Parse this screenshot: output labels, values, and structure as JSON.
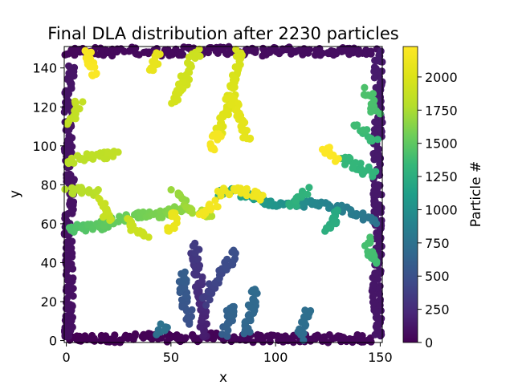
{
  "chart_data": {
    "type": "scatter",
    "title": "Final DLA distribution after 2230 particles",
    "xlabel": "x",
    "ylabel": "y",
    "xlim": [
      -1,
      151
    ],
    "ylim": [
      -1,
      151
    ],
    "xticks": [
      0,
      50,
      100,
      150
    ],
    "yticks": [
      0,
      20,
      40,
      60,
      80,
      100,
      120,
      140
    ],
    "colorbar": {
      "label": "Particle #",
      "colormap": "viridis",
      "range": [
        0,
        2229
      ],
      "ticks": [
        0,
        250,
        500,
        750,
        1000,
        1250,
        1500,
        1750,
        2000
      ]
    },
    "grid": false,
    "n_particles": 2230,
    "branches": [
      {
        "start_id": 0,
        "points": [
          [
            1,
            1
          ],
          [
            12,
            1
          ],
          [
            25,
            1
          ],
          [
            40,
            2
          ],
          [
            55,
            1
          ],
          [
            70,
            2
          ],
          [
            85,
            1
          ],
          [
            100,
            1
          ],
          [
            115,
            1
          ],
          [
            130,
            1
          ],
          [
            145,
            1
          ]
        ]
      },
      {
        "start_id": 40,
        "points": [
          [
            1,
            148
          ],
          [
            10,
            149
          ],
          [
            20,
            148
          ],
          [
            33,
            149
          ],
          [
            45,
            148
          ],
          [
            60,
            149
          ],
          [
            75,
            149
          ],
          [
            90,
            148
          ],
          [
            105,
            149
          ],
          [
            120,
            148
          ],
          [
            135,
            149
          ],
          [
            148,
            148
          ]
        ]
      },
      {
        "start_id": 80,
        "points": [
          [
            1,
            2
          ],
          [
            2,
            20
          ],
          [
            1,
            40
          ],
          [
            1,
            60
          ],
          [
            2,
            80
          ],
          [
            1,
            100
          ],
          [
            1,
            120
          ],
          [
            2,
            140
          ]
        ]
      },
      {
        "start_id": 115,
        "points": [
          [
            149,
            3
          ],
          [
            148,
            25
          ],
          [
            149,
            45
          ],
          [
            149,
            70
          ],
          [
            148,
            90
          ],
          [
            149,
            110
          ],
          [
            149,
            130
          ],
          [
            149,
            147
          ]
        ]
      },
      {
        "start_id": 150,
        "points": [
          [
            65,
            1
          ],
          [
            66,
            8
          ],
          [
            65,
            16
          ],
          [
            64,
            24
          ],
          [
            63,
            32
          ],
          [
            62,
            40
          ],
          [
            61,
            46
          ],
          [
            62,
            50
          ]
        ]
      },
      {
        "start_id": 360,
        "points": [
          [
            66,
            20
          ],
          [
            70,
            28
          ],
          [
            74,
            34
          ],
          [
            78,
            40
          ],
          [
            80,
            45
          ]
        ]
      },
      {
        "start_id": 500,
        "points": [
          [
            60,
            10
          ],
          [
            57,
            18
          ],
          [
            55,
            26
          ],
          [
            56,
            34
          ]
        ]
      },
      {
        "start_id": 600,
        "points": [
          [
            76,
            4
          ],
          [
            78,
            12
          ],
          [
            80,
            18
          ]
        ]
      },
      {
        "start_id": 650,
        "points": [
          [
            86,
            3
          ],
          [
            88,
            12
          ],
          [
            89,
            20
          ],
          [
            90,
            26
          ]
        ]
      },
      {
        "start_id": 700,
        "points": [
          [
            112,
            2
          ],
          [
            113,
            8
          ],
          [
            115,
            14
          ]
        ]
      },
      {
        "start_id": 730,
        "points": [
          [
            45,
            3
          ],
          [
            47,
            7
          ]
        ]
      },
      {
        "start_id": 760,
        "points": [
          [
            148,
            62
          ],
          [
            142,
            64
          ],
          [
            136,
            66
          ],
          [
            130,
            68
          ],
          [
            122,
            70
          ],
          [
            114,
            70
          ],
          [
            106,
            70
          ],
          [
            98,
            71
          ]
        ]
      },
      {
        "start_id": 1040,
        "points": [
          [
            98,
            71
          ],
          [
            92,
            73
          ],
          [
            86,
            75
          ],
          [
            80,
            76
          ],
          [
            74,
            76
          ]
        ]
      },
      {
        "start_id": 1200,
        "points": [
          [
            130,
            66
          ],
          [
            128,
            60
          ],
          [
            125,
            56
          ]
        ]
      },
      {
        "start_id": 1260,
        "points": [
          [
            106,
            68
          ],
          [
            110,
            72
          ],
          [
            115,
            77
          ]
        ]
      },
      {
        "start_id": 1300,
        "points": [
          [
            148,
            85
          ],
          [
            142,
            88
          ],
          [
            136,
            91
          ],
          [
            132,
            93
          ]
        ]
      },
      {
        "start_id": 1340,
        "points": [
          [
            147,
            102
          ],
          [
            143,
            106
          ],
          [
            139,
            110
          ]
        ]
      },
      {
        "start_id": 1380,
        "points": [
          [
            148,
            40
          ],
          [
            145,
            45
          ],
          [
            144,
            52
          ]
        ]
      },
      {
        "start_id": 1410,
        "points": [
          [
            148,
            118
          ],
          [
            145,
            124
          ],
          [
            144,
            128
          ]
        ]
      },
      {
        "start_id": 1430,
        "points": [
          [
            1,
            57
          ],
          [
            8,
            58
          ],
          [
            16,
            59
          ],
          [
            22,
            61
          ],
          [
            28,
            63
          ],
          [
            36,
            64
          ],
          [
            44,
            64
          ],
          [
            50,
            66
          ],
          [
            56,
            69
          ]
        ]
      },
      {
        "start_id": 1650,
        "points": [
          [
            56,
            69
          ],
          [
            54,
            74
          ],
          [
            52,
            76
          ]
        ]
      },
      {
        "start_id": 1700,
        "points": [
          [
            56,
            69
          ],
          [
            60,
            67
          ],
          [
            64,
            66
          ],
          [
            70,
            65
          ]
        ]
      },
      {
        "start_id": 1780,
        "points": [
          [
            1,
            77
          ],
          [
            8,
            77
          ],
          [
            14,
            76
          ]
        ]
      },
      {
        "start_id": 1810,
        "points": [
          [
            1,
            92
          ],
          [
            10,
            94
          ],
          [
            18,
            95
          ],
          [
            24,
            96
          ]
        ]
      },
      {
        "start_id": 1850,
        "points": [
          [
            1,
            112
          ],
          [
            4,
            116
          ],
          [
            6,
            122
          ]
        ]
      },
      {
        "start_id": 1870,
        "points": [
          [
            20,
            62
          ],
          [
            18,
            68
          ],
          [
            16,
            72
          ]
        ]
      },
      {
        "start_id": 1890,
        "points": [
          [
            30,
            63
          ],
          [
            32,
            58
          ],
          [
            36,
            55
          ],
          [
            38,
            54
          ]
        ]
      },
      {
        "start_id": 1910,
        "points": [
          [
            62,
            148
          ],
          [
            58,
            140
          ],
          [
            55,
            130
          ],
          [
            52,
            122
          ]
        ]
      },
      {
        "start_id": 1960,
        "points": [
          [
            82,
            148
          ],
          [
            82,
            140
          ],
          [
            80,
            132
          ],
          [
            78,
            124
          ],
          [
            76,
            116
          ],
          [
            74,
            110
          ],
          [
            72,
            106
          ]
        ]
      },
      {
        "start_id": 2040,
        "points": [
          [
            78,
            124
          ],
          [
            82,
            118
          ],
          [
            84,
            112
          ],
          [
            86,
            104
          ]
        ]
      },
      {
        "start_id": 2070,
        "points": [
          [
            44,
            148
          ],
          [
            42,
            142
          ],
          [
            40,
            138
          ]
        ]
      },
      {
        "start_id": 2090,
        "points": [
          [
            50,
            66
          ],
          [
            52,
            60
          ],
          [
            48,
            56
          ]
        ]
      },
      {
        "start_id": 2110,
        "points": [
          [
            74,
            76
          ],
          [
            80,
            77
          ],
          [
            88,
            76
          ],
          [
            94,
            74
          ]
        ]
      },
      {
        "start_id": 2150,
        "points": [
          [
            64,
            66
          ],
          [
            68,
            68
          ],
          [
            72,
            70
          ]
        ]
      },
      {
        "start_id": 2170,
        "points": [
          [
            72,
            106
          ],
          [
            70,
            100
          ],
          [
            68,
            98
          ]
        ]
      },
      {
        "start_id": 2190,
        "points": [
          [
            10,
            148
          ],
          [
            12,
            140
          ],
          [
            14,
            136
          ]
        ]
      },
      {
        "start_id": 2210,
        "points": [
          [
            130,
            93
          ],
          [
            126,
            96
          ],
          [
            124,
            99
          ]
        ]
      }
    ]
  }
}
